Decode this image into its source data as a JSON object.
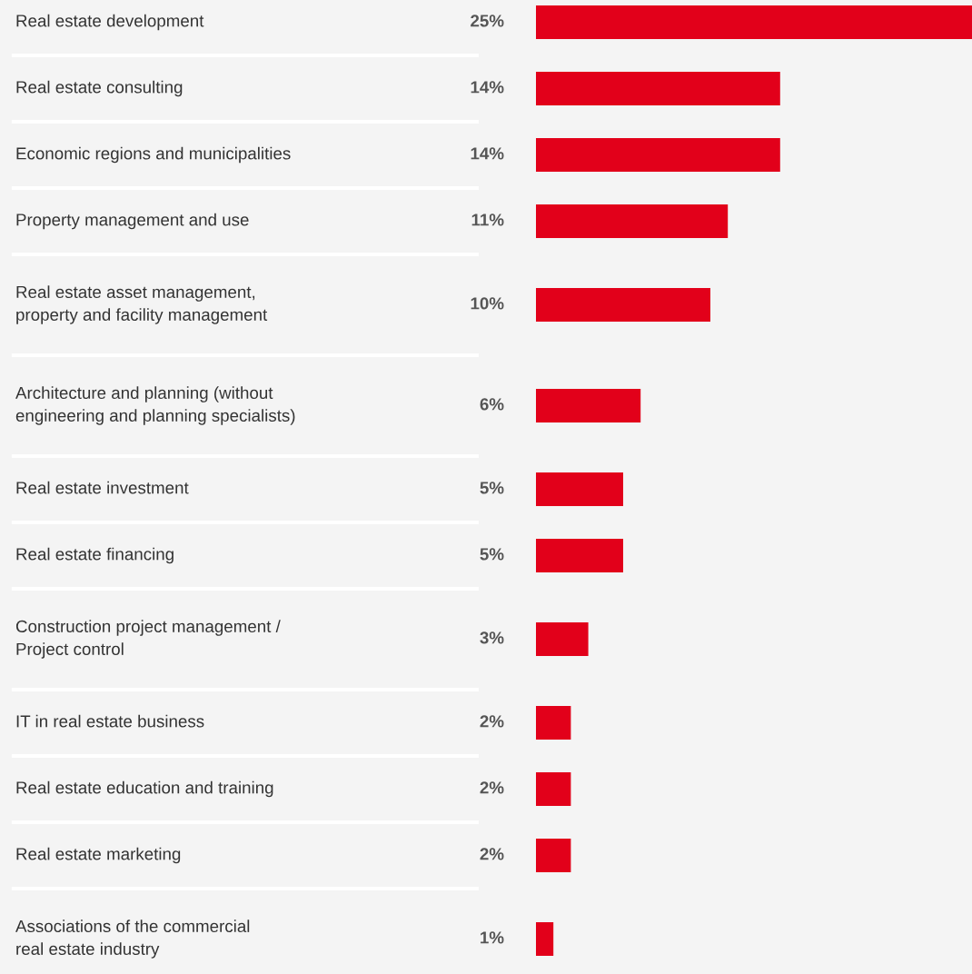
{
  "chart_data": {
    "type": "bar",
    "orientation": "horizontal",
    "categories": [
      "Real estate development",
      "Real estate consulting",
      "Economic regions and municipalities",
      "Property management and use",
      "Real estate asset management,\nproperty and facility management",
      "Architecture and planning (without\nengineering and planning specialists)",
      "Real estate investment",
      "Real estate financing",
      "Construction project management /\nProject control",
      "IT in real estate business",
      "Real estate education and training",
      "Real estate marketing",
      "Associations of the commercial\nreal estate industry"
    ],
    "values": [
      25,
      14,
      14,
      11,
      10,
      6,
      5,
      5,
      3,
      2,
      2,
      2,
      1
    ],
    "value_labels": [
      "25%",
      "14%",
      "14%",
      "11%",
      "10%",
      "6%",
      "5%",
      "5%",
      "3%",
      "2%",
      "2%",
      "2%",
      "1%"
    ],
    "color": "#e2001a",
    "xlim": [
      0,
      25
    ],
    "tick_labels": "y"
  }
}
